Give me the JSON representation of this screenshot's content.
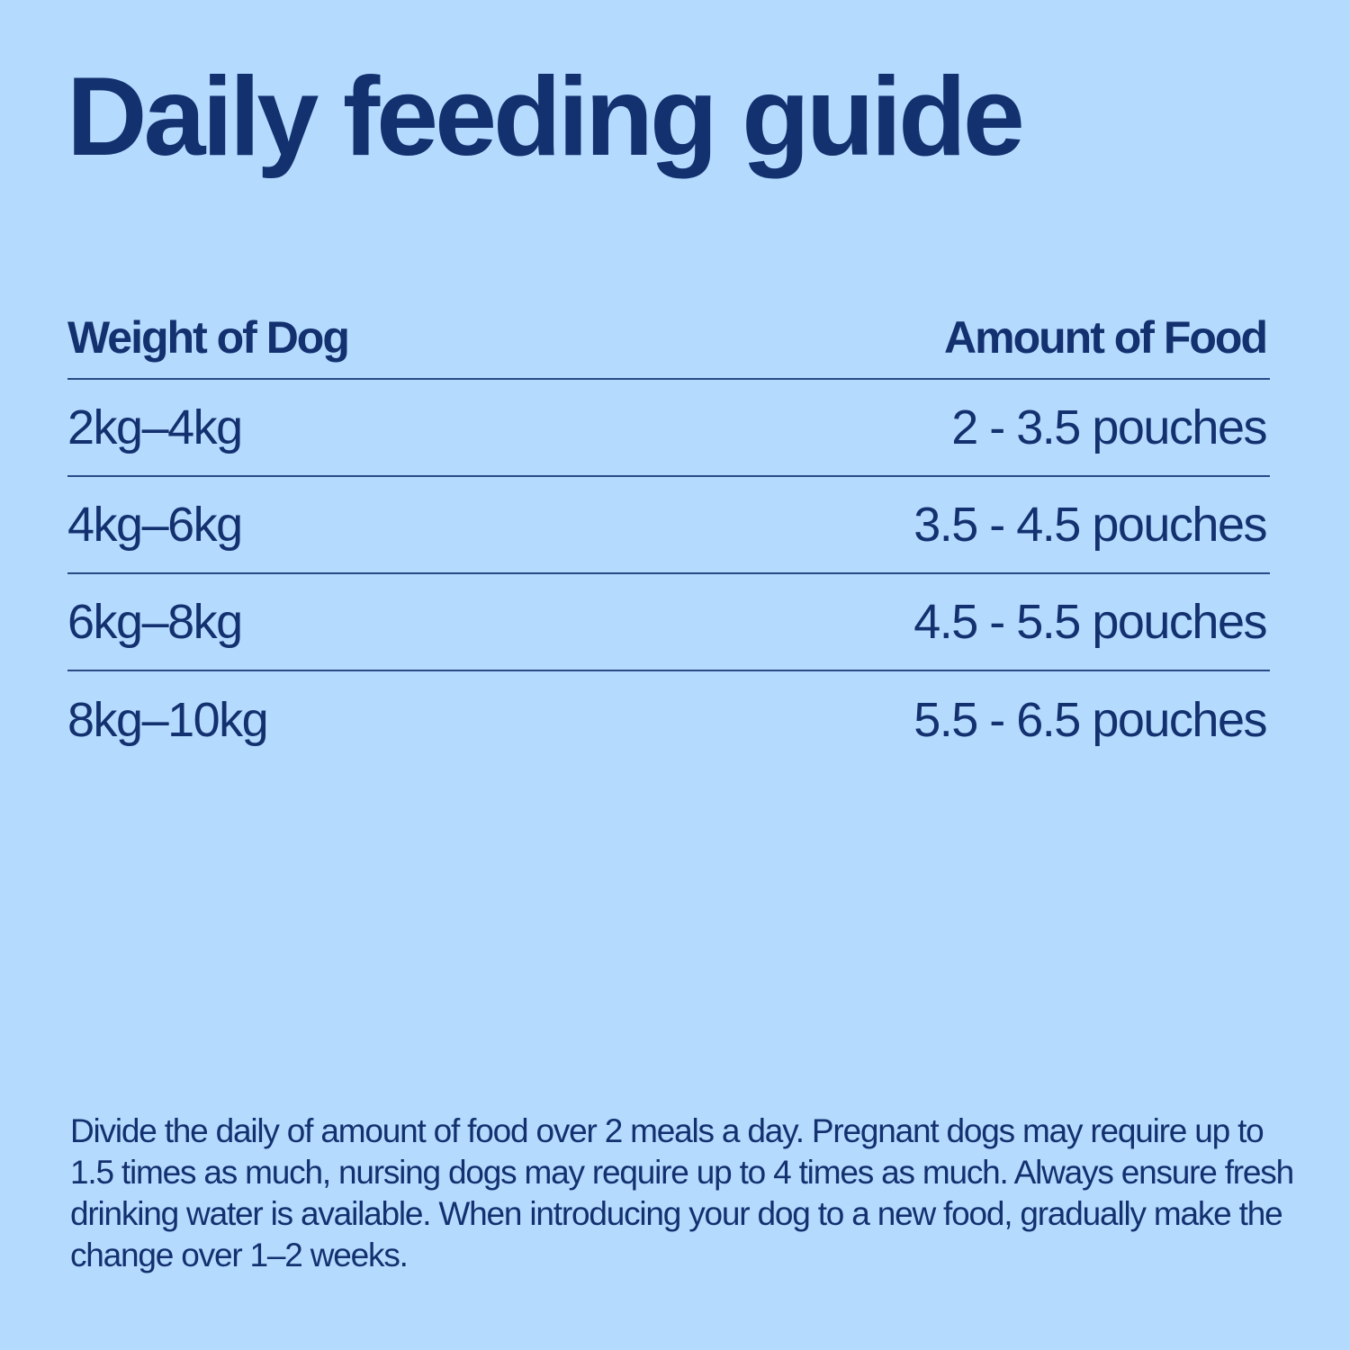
{
  "title": "Daily feeding guide",
  "table": {
    "headers": {
      "weight": "Weight of Dog",
      "amount": "Amount of Food"
    },
    "rows": [
      {
        "weight": "2kg–4kg",
        "amount": "2 - 3.5 pouches"
      },
      {
        "weight": "4kg–6kg",
        "amount": "3.5 - 4.5 pouches"
      },
      {
        "weight": "6kg–8kg",
        "amount": "4.5 - 5.5 pouches"
      },
      {
        "weight": "8kg–10kg",
        "amount": "5.5 - 6.5 pouches"
      }
    ]
  },
  "note": "Divide the daily of amount of food over 2 meals a day. Pregnant dogs may require up to 1.5 times as much, nursing dogs may require up to 4 times as much. Always ensure fresh drinking water is available. When introducing your dog to a new food, gradually make the change over 1–2 weeks.",
  "colors": {
    "background": "#b4dafe",
    "text": "#13306f",
    "divider": "#2a4a86"
  }
}
